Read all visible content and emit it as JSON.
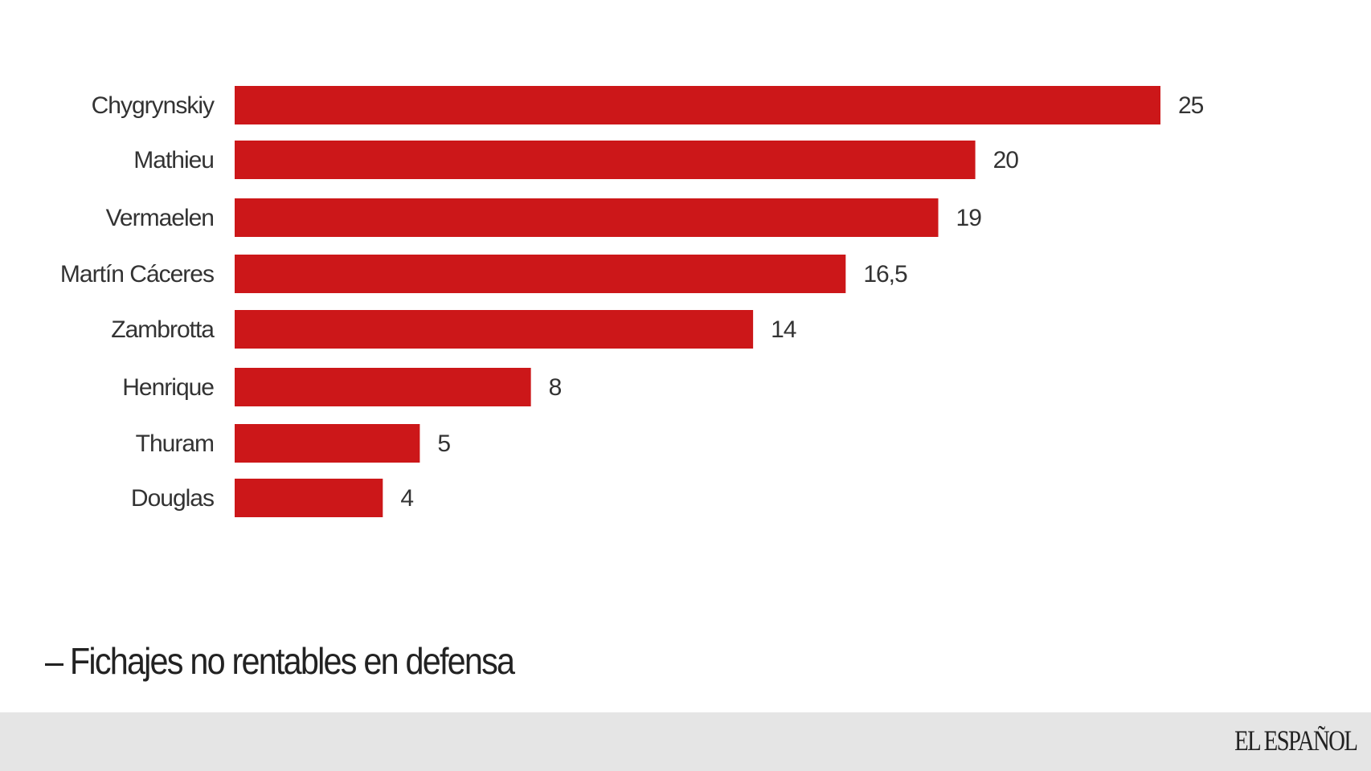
{
  "chart_data": {
    "type": "bar",
    "orientation": "horizontal",
    "title": "– Fichajes no rentables en defensa",
    "categories": [
      "Chygrynskiy",
      "Mathieu",
      "Vermaelen",
      "Martín Cáceres",
      "Zambrotta",
      "Henrique",
      "Thuram",
      "Douglas"
    ],
    "values": [
      25,
      20,
      19,
      16.5,
      14,
      8,
      5,
      4
    ],
    "value_labels": [
      "25",
      "20",
      "19",
      "16,5",
      "14",
      "8",
      "5",
      "4"
    ],
    "xlim": [
      0,
      25
    ],
    "grid": false,
    "bar_color": "#cc1719"
  },
  "footer": {
    "logo": "EL ESPAÑOL",
    "background": "#e5e5e5"
  }
}
